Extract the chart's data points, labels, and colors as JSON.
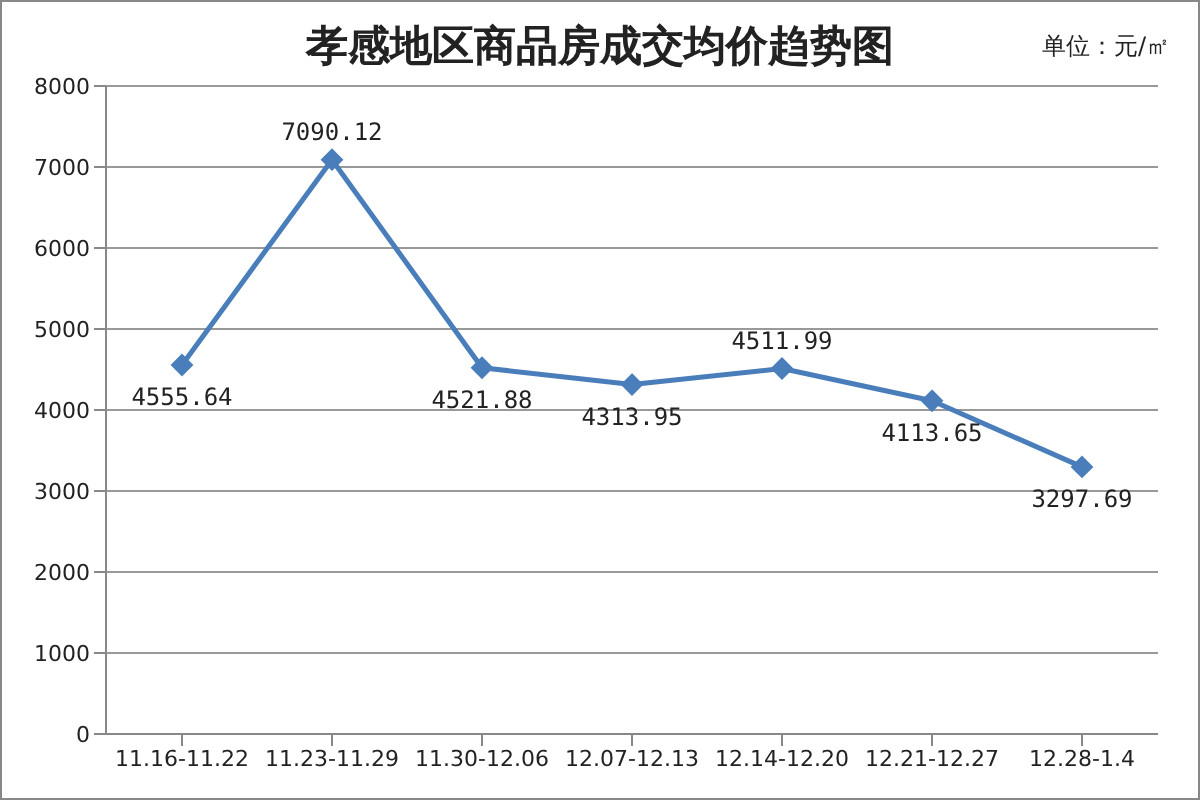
{
  "chart_data": {
    "type": "line",
    "title": "孝感地区商品房成交均价趋势图",
    "annotations": [
      "单位：元/㎡"
    ],
    "categories": [
      "11.16-11.22",
      "11.23-11.29",
      "11.30-12.06",
      "12.07-12.13",
      "12.14-12.20",
      "12.21-12.27",
      "12.28-1.4"
    ],
    "series": [
      {
        "color": "#4a7ebb",
        "values": [
          4555.64,
          7090.12,
          4521.88,
          4313.95,
          4511.99,
          4113.65,
          3297.69
        ]
      }
    ],
    "ylim": [
      0,
      8000
    ],
    "yticks": [
      0,
      1000,
      2000,
      3000,
      4000,
      5000,
      6000,
      7000,
      8000
    ],
    "grid": "y",
    "marker": "diamond",
    "data_labels": true
  }
}
